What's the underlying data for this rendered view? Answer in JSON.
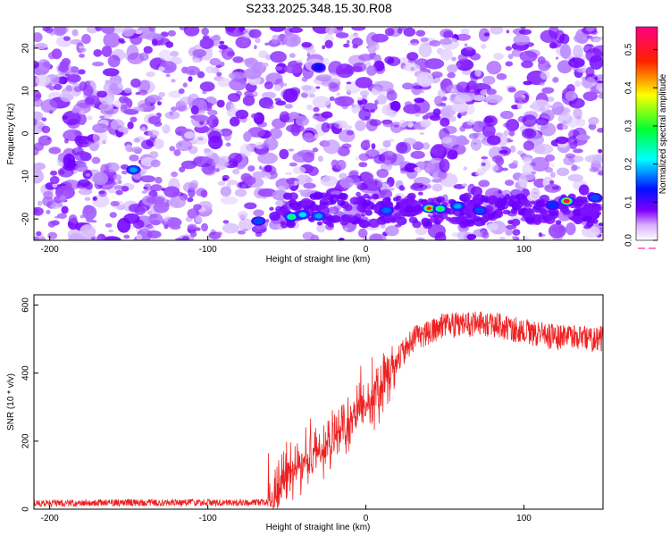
{
  "title": "S233.2025.348.15.30.R08",
  "chart_data": [
    {
      "type": "heatmap",
      "xlabel": "Height of straight line (km)",
      "ylabel": "Frequency (Hz)",
      "xlim": [
        -210,
        150
      ],
      "ylim": [
        -25,
        25
      ],
      "x_ticks": [
        -200,
        -100,
        0,
        100
      ],
      "y_ticks": [
        -20,
        -10,
        0,
        10,
        20
      ],
      "colorbar": {
        "label": "Normalized spectral amplitude",
        "range": [
          0,
          0.56
        ],
        "ticks": [
          0.0,
          0.1,
          0.2,
          0.3,
          0.4,
          0.5
        ],
        "colormap": [
          "#ffffff",
          "#8000ff",
          "#0000ff",
          "#00ffff",
          "#00ff00",
          "#ffff00",
          "#ff0000",
          "#ff0080"
        ]
      },
      "hotspots": [
        {
          "x": -147,
          "y": -8.5,
          "value": 0.18
        },
        {
          "x": -68,
          "y": -20.5,
          "value": 0.15
        },
        {
          "x": -47,
          "y": -19.5,
          "value": 0.27
        },
        {
          "x": -40,
          "y": -19,
          "value": 0.2
        },
        {
          "x": -30,
          "y": 15.5,
          "value": 0.13
        },
        {
          "x": -30,
          "y": -19.3,
          "value": 0.18
        },
        {
          "x": 13,
          "y": -18,
          "value": 0.16
        },
        {
          "x": 40,
          "y": -17.5,
          "value": 0.47
        },
        {
          "x": 47,
          "y": -17.6,
          "value": 0.3
        },
        {
          "x": 58,
          "y": -17,
          "value": 0.18
        },
        {
          "x": 72,
          "y": -18,
          "value": 0.15
        },
        {
          "x": 118,
          "y": -16.8,
          "value": 0.14
        },
        {
          "x": 127,
          "y": -15.8,
          "value": 0.52
        },
        {
          "x": 145,
          "y": -15,
          "value": 0.15
        }
      ]
    },
    {
      "type": "line",
      "xlabel": "Height of straight line (km)",
      "ylabel": "SNR (10 * v/v)",
      "xlim": [
        -210,
        150
      ],
      "ylim": [
        0,
        630
      ],
      "x_ticks": [
        -200,
        -100,
        0,
        100
      ],
      "y_ticks": [
        0,
        200,
        400,
        600
      ],
      "color": "#ee2222",
      "trend": {
        "x": [
          -210,
          -60,
          -50,
          -40,
          -30,
          -10,
          10,
          20,
          30,
          50,
          80,
          100,
          120,
          150
        ],
        "y": [
          18,
          20,
          110,
          120,
          160,
          260,
          350,
          440,
          500,
          540,
          545,
          520,
          505,
          500
        ]
      }
    }
  ]
}
